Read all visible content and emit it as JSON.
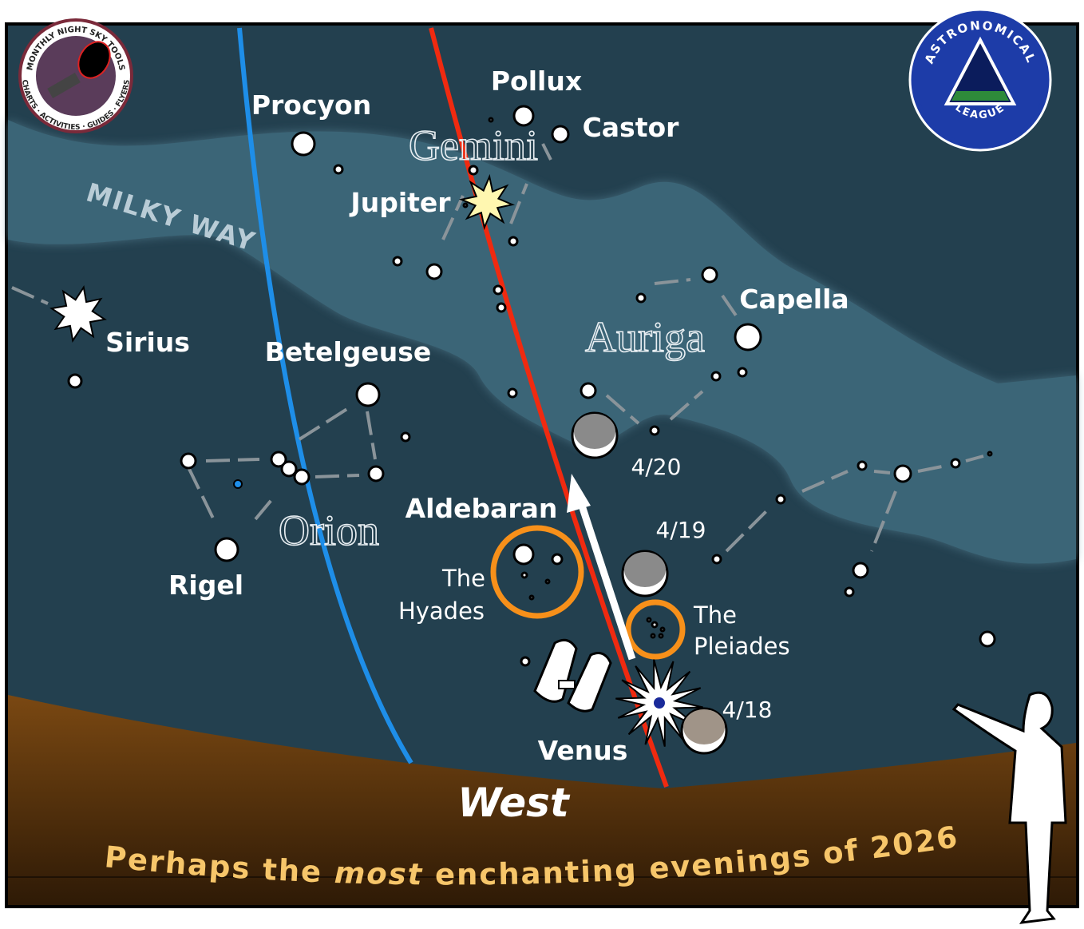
{
  "logo_left": {
    "top_text": "MONTHLY NIGHT SKY TOOLS",
    "bottom_text": "CHARTS · ACTIVITIES · GUIDES · FLYERS"
  },
  "logo_right": {
    "top_text": "ASTRONOMICAL",
    "bottom_text": "LEAGUE"
  },
  "milky_way": "MILKY WAY",
  "stars": [
    "Procyon",
    "Pollux",
    "Castor",
    "Jupiter",
    "Sirius",
    "Betelgeuse",
    "Capella",
    "Aldebaran",
    "Rigel",
    "Venus"
  ],
  "constellations": [
    "Gemini",
    "Auriga",
    "Orion"
  ],
  "clusters": [
    {
      "line1": "The",
      "line2": "Hyades"
    },
    {
      "line1": "The",
      "line2": "Pleiades"
    }
  ],
  "moon_dates": [
    "4/20",
    "4/19",
    "4/18"
  ],
  "direction": "West",
  "tagline": [
    "Perhaps the ",
    "most",
    " enchanting evenings of 2026!"
  ]
}
